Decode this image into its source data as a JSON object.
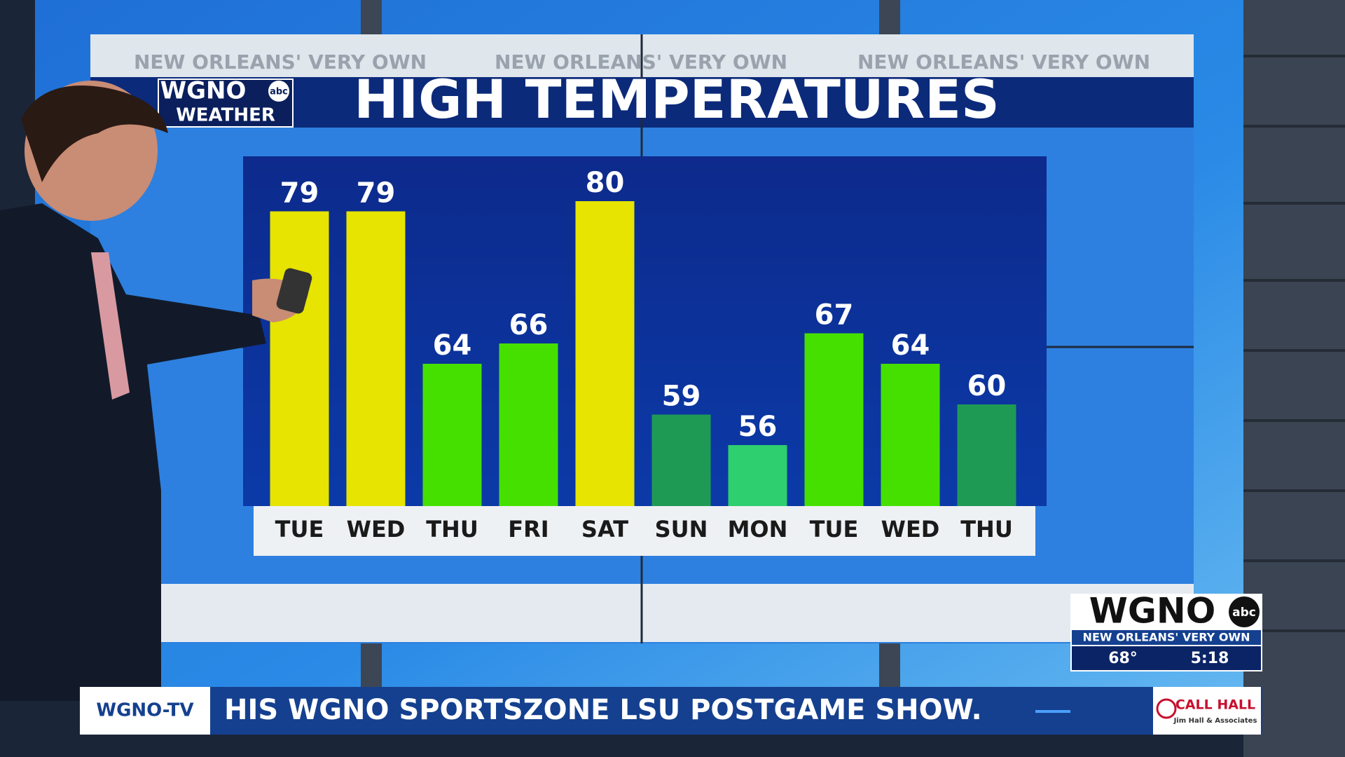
{
  "chart_data": {
    "type": "bar",
    "title": "HIGH TEMPERATURES",
    "categories": [
      "TUE",
      "WED",
      "THU",
      "FRI",
      "SAT",
      "SUN",
      "MON",
      "TUE",
      "WED",
      "THU"
    ],
    "values": [
      79,
      79,
      64,
      66,
      80,
      59,
      56,
      67,
      64,
      60
    ],
    "colors": [
      "#e6e400",
      "#e6e400",
      "#45e000",
      "#45e000",
      "#e6e400",
      "#1f9a55",
      "#2ecf6e",
      "#45e000",
      "#45e000",
      "#1f9a55"
    ],
    "ylim": [
      50,
      84
    ]
  },
  "header": {
    "banner": [
      "NEW ORLEANS' VERY OWN",
      "NEW ORLEANS' VERY OWN",
      "NEW ORLEANS' VERY OWN"
    ],
    "logo": {
      "top": "WGNO",
      "badge": "abc",
      "bottom": "WEATHER"
    }
  },
  "bug": {
    "logo": "WGNO",
    "badge": "abc",
    "slogan": "NEW ORLEANS' VERY OWN",
    "temperature": "68°",
    "time": "5:18"
  },
  "ticker": {
    "station": "WGNO-TV",
    "text": "HIS WGNO SPORTSZONE LSU POSTGAME SHOW.",
    "sponsor": "CALL HALL",
    "sponsor_sub": "Jim Hall & Associates"
  }
}
